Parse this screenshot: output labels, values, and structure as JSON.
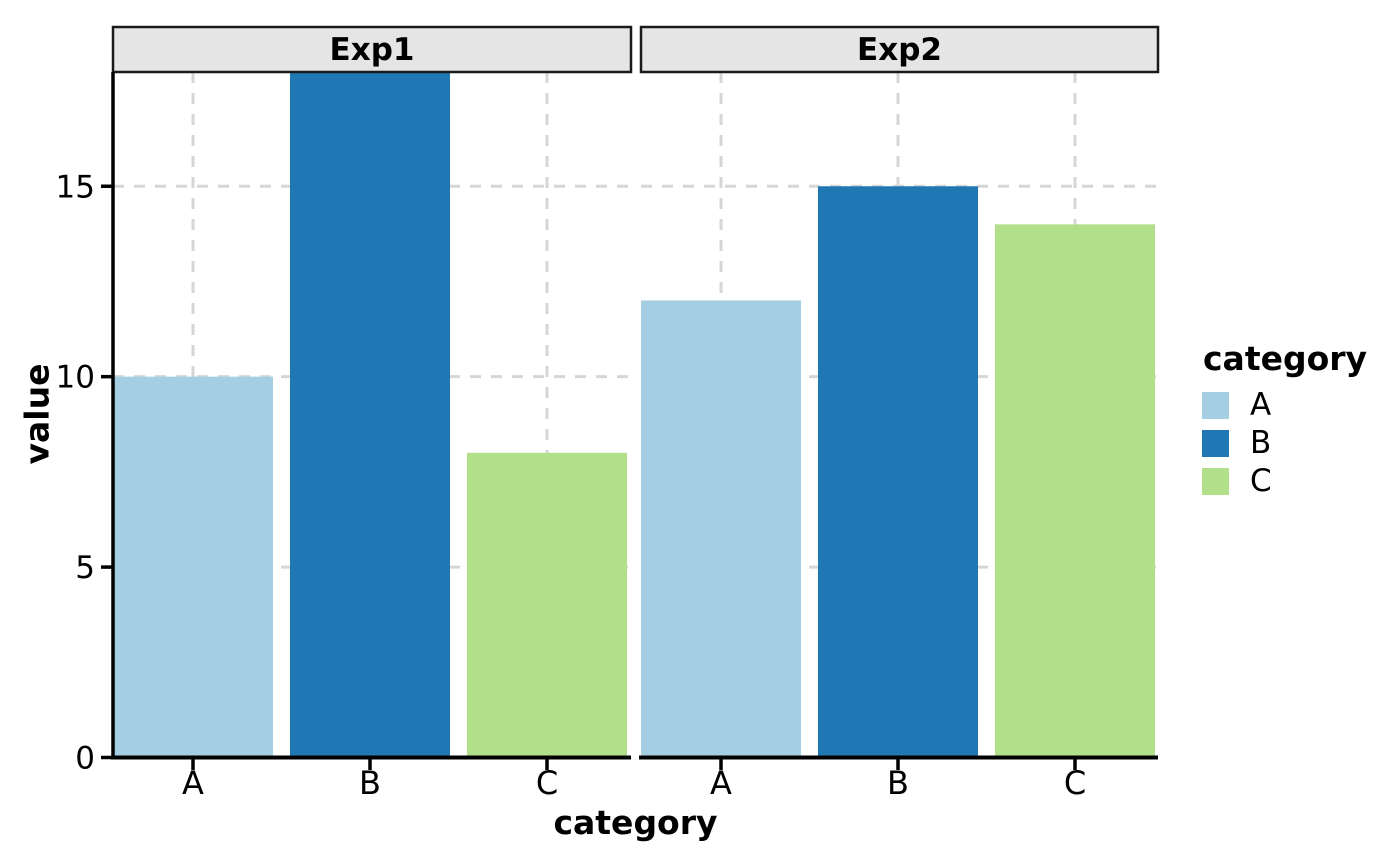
{
  "chart_data": {
    "type": "bar",
    "title": "",
    "xlabel": "category",
    "ylabel": "value",
    "categories": [
      "A",
      "B",
      "C"
    ],
    "facets": [
      {
        "label": "Exp1",
        "values": [
          10,
          18,
          8
        ]
      },
      {
        "label": "Exp2",
        "values": [
          12,
          15,
          14
        ]
      }
    ],
    "bar_colors": [
      "#a6cee3",
      "#1f78b4",
      "#b2df8a"
    ],
    "ylim": [
      0,
      18
    ],
    "yticks": [
      0,
      5,
      10,
      15
    ],
    "grid": {
      "style": "dashed",
      "color": "#d6d6d6"
    },
    "legend": {
      "title": "category",
      "position": "right",
      "entries": [
        {
          "label": "A",
          "color": "#a6cee3"
        },
        {
          "label": "B",
          "color": "#1f78b4"
        },
        {
          "label": "C",
          "color": "#b2df8a"
        }
      ]
    },
    "style": {
      "strip_bg": "#e5e5e5",
      "strip_border": "#1a1a1a",
      "axis_color": "#000000",
      "text_color": "#000000",
      "background": "#ffffff"
    }
  }
}
